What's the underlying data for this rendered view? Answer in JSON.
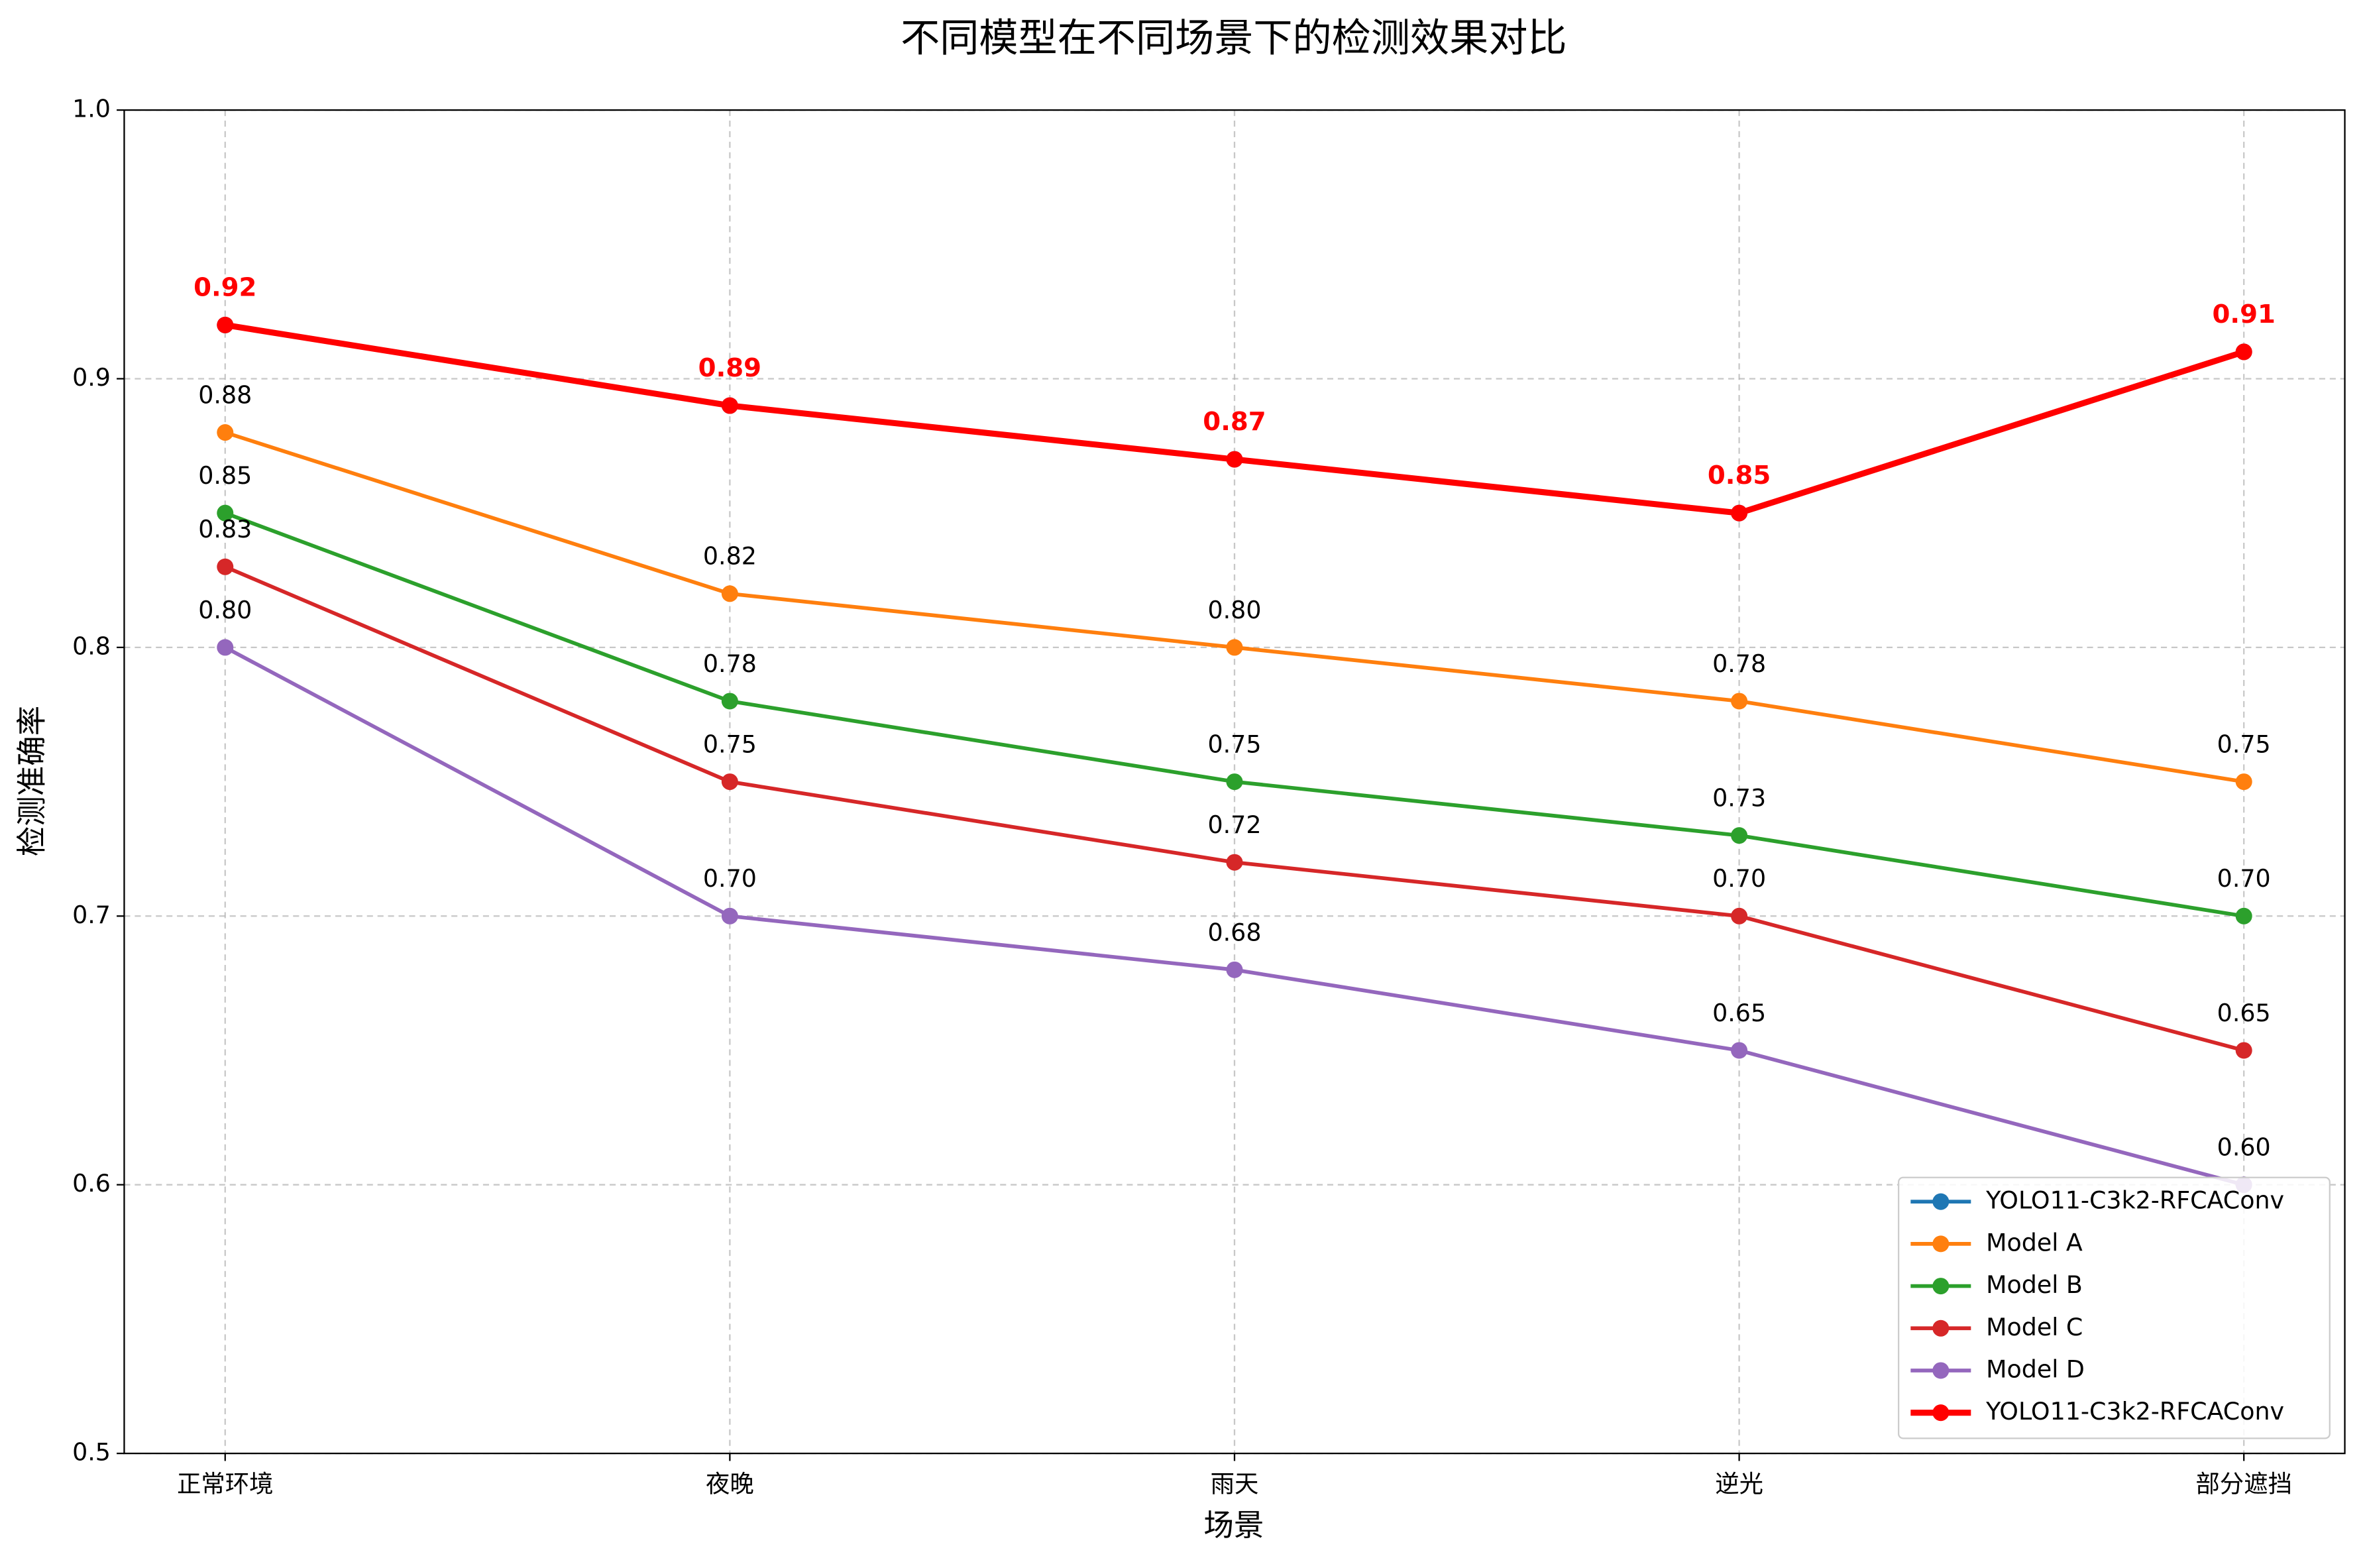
{
  "chart_data": {
    "type": "line",
    "title": "不同模型在不同场景下的检测效果对比",
    "xlabel": "场景",
    "ylabel": "检测准确率",
    "categories": [
      "正常环境",
      "夜晚",
      "雨天",
      "逆光",
      "部分遮挡"
    ],
    "ylim": [
      0.5,
      1.0
    ],
    "yticks": [
      0.5,
      0.6,
      0.7,
      0.8,
      0.9,
      {
        "value": 1.0,
        "label": "1.0"
      }
    ],
    "grid": true,
    "legend": "lower right",
    "series": [
      {
        "name": "YOLO11-C3k2-RFCAConv",
        "color": "#1f77b4",
        "values": [
          0.92,
          0.89,
          0.87,
          0.85,
          0.91
        ]
      },
      {
        "name": "Model A",
        "color": "#ff7f0e",
        "values": [
          0.88,
          0.82,
          0.8,
          0.78,
          0.75
        ],
        "value_labels": [
          "0.88",
          "0.82",
          "0.80",
          "0.78",
          "0.75"
        ]
      },
      {
        "name": "Model B",
        "color": "#2ca02c",
        "values": [
          0.85,
          0.78,
          0.75,
          0.73,
          0.7
        ],
        "value_labels": [
          "0.85",
          "0.78",
          "0.75",
          "0.73",
          "0.70"
        ]
      },
      {
        "name": "Model C",
        "color": "#d62728",
        "values": [
          0.83,
          0.75,
          0.72,
          0.7,
          0.65
        ],
        "value_labels": [
          "0.83",
          "0.75",
          "0.72",
          "0.70",
          "0.65"
        ]
      },
      {
        "name": "Model D",
        "color": "#9467bd",
        "values": [
          0.8,
          0.7,
          0.68,
          0.65,
          0.6
        ],
        "value_labels": [
          "0.80",
          "0.70",
          "0.68",
          "0.65",
          "0.60"
        ]
      },
      {
        "name": "YOLO11-C3k2-RFCAConv",
        "color": "#ff0000",
        "values": [
          0.92,
          0.89,
          0.87,
          0.85,
          0.91
        ],
        "value_labels": [
          "0.92",
          "0.89",
          "0.87",
          "0.85",
          "0.91"
        ]
      }
    ]
  }
}
